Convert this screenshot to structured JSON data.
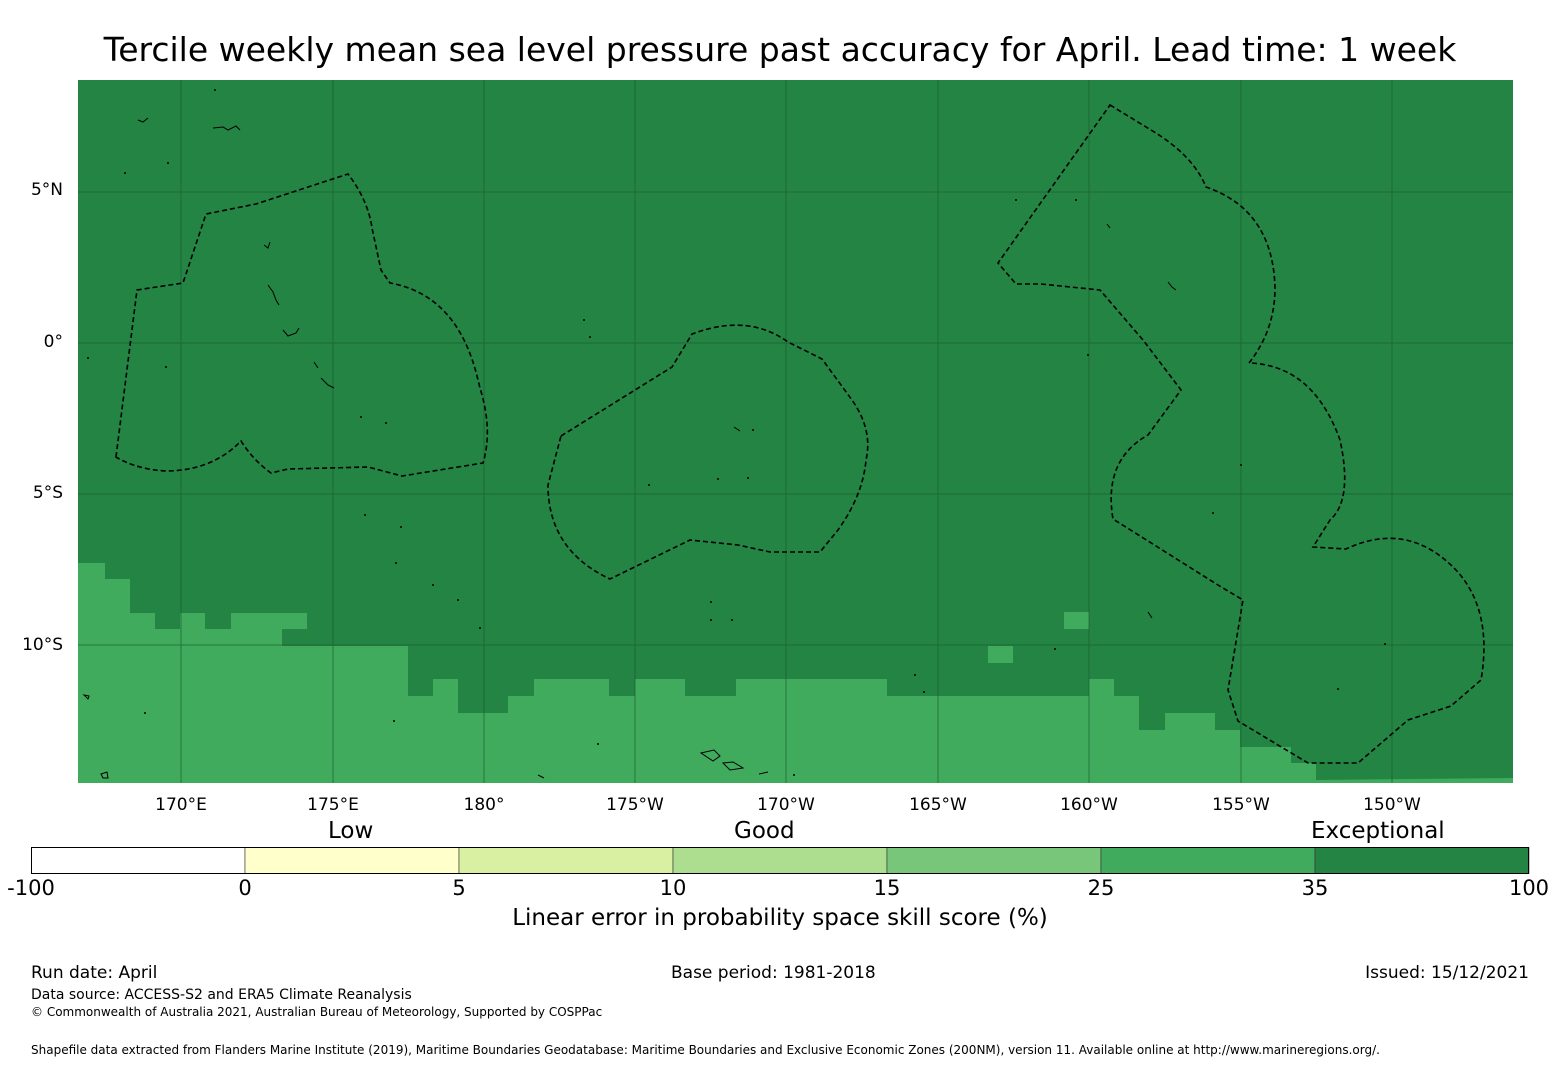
{
  "title": "Tercile weekly mean sea level pressure past accuracy for April. Lead time: 1 week",
  "map": {
    "lat_ticks": [
      "5°N",
      "0°",
      "5°S",
      "10°S"
    ],
    "lon_ticks": [
      "170°E",
      "175°E",
      "180°",
      "175°W",
      "170°W",
      "165°W",
      "160°W",
      "155°W",
      "150°W"
    ],
    "colors": {
      "exceptional": "#238443",
      "high": "#41ab5d",
      "coast": "#000000",
      "eez": "#000000"
    }
  },
  "legend": {
    "categories": [
      "Low",
      "Good",
      "Exceptional"
    ],
    "ticks": [
      "-100",
      "0",
      "5",
      "10",
      "15",
      "25",
      "35",
      "100"
    ],
    "colors": [
      "#ffffff",
      "#ffffcc",
      "#d9f0a3",
      "#addd8e",
      "#78c679",
      "#41ab5d",
      "#238443"
    ],
    "title": "Linear error in probability space skill score (%)"
  },
  "footer": {
    "run_date": "Run date: April",
    "base_period": "Base period: 1981-2018",
    "issued": "Issued: 15/12/2021",
    "data_source": "Data source: ACCESS-S2 and ERA5 Climate Reanalysis",
    "copyright": "© Commonwealth of Australia 2021, Australian Bureau of Meteorology, Supported by COSPPac",
    "shapefile": "Shapefile data extracted from Flanders Marine Institute (2019), Maritime Boundaries Geodatabase: Maritime Boundaries and Exclusive Economic Zones (200NM), version 11. Available online at http://www.marineregions.org/."
  }
}
